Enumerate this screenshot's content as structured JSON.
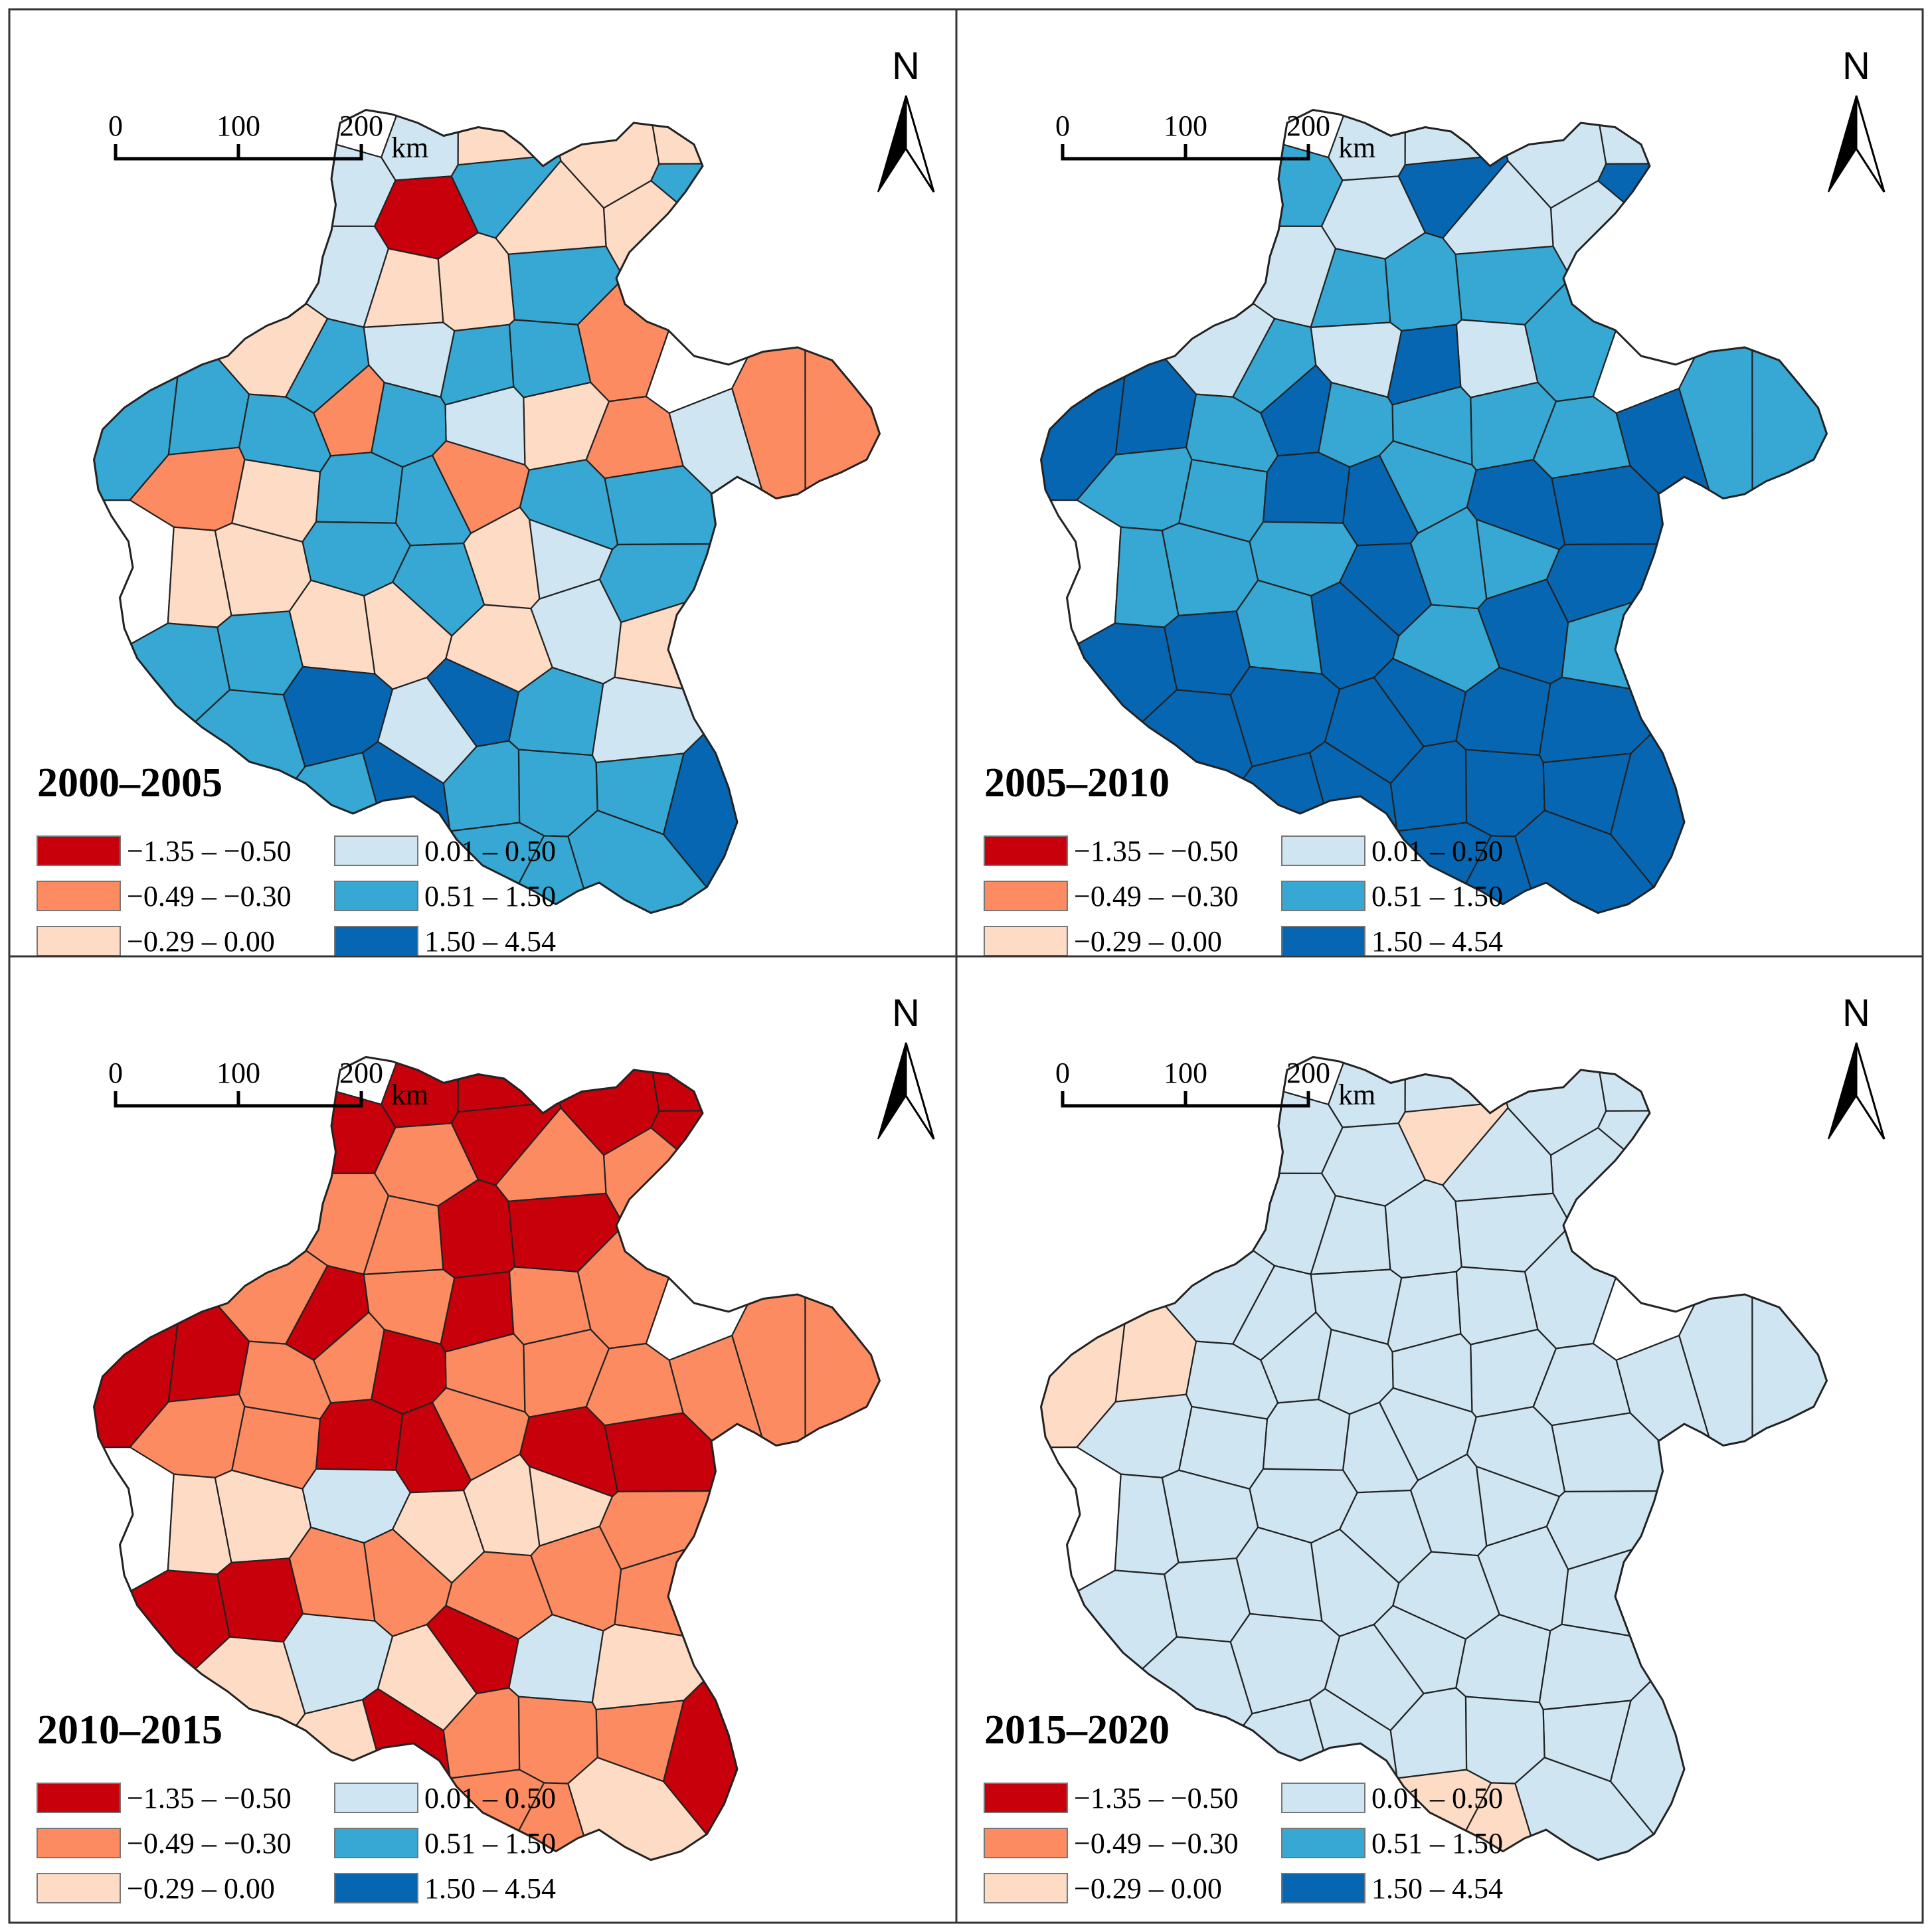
{
  "figure": {
    "scale_bar": {
      "ticks": [
        "0",
        "100",
        "200"
      ],
      "unit": "km"
    },
    "north_arrow": {
      "label": "N"
    },
    "legend": {
      "classes": [
        {
          "label": "−1.35 – −0.50",
          "color": "#c8000b"
        },
        {
          "label": "−0.49 – −0.30",
          "color": "#fc8b62"
        },
        {
          "label": "−0.29 – 0.00",
          "color": "#fddbc4"
        },
        {
          "label": "0.01 – 0.50",
          "color": "#cfe6f2"
        },
        {
          "label": "0.51 – 1.50",
          "color": "#36a8d3"
        },
        {
          "label": "1.50 – 4.54",
          "color": "#0766b1"
        }
      ],
      "no_data_color": "#ffffff"
    },
    "panels": [
      {
        "label": "2000–2005",
        "regions": [
          "none",
          "3",
          "2",
          "2",
          "2",
          "3",
          "4",
          "4",
          "2",
          "0",
          "2",
          "3",
          "4",
          "2",
          "2",
          "1",
          "2",
          "3",
          "4",
          "4",
          "4",
          "none",
          "1",
          "1",
          "1",
          "2",
          "3",
          "4",
          "4",
          "4",
          "3",
          "4",
          "1",
          "1",
          "1",
          "2",
          "4",
          "4",
          "4",
          "4",
          "4",
          "3",
          "2",
          "2",
          "none",
          "2",
          "4",
          "4",
          "3",
          "2",
          "2",
          "2",
          "2",
          "4",
          "4",
          "5",
          "5",
          "4",
          "4",
          "3",
          "3",
          "4",
          "4",
          "4",
          "5",
          "5",
          "4",
          "4",
          "4",
          "4",
          "3",
          "none",
          "5",
          "5",
          "5",
          "5",
          "5",
          "5",
          "none",
          "4",
          "none",
          "5",
          "5",
          "5",
          "5",
          "5",
          "3",
          "none",
          "5",
          "5",
          "5",
          "5",
          "5"
        ]
      },
      {
        "label": "2005–2010",
        "regions": [
          "none",
          "3",
          "3",
          "3",
          "3",
          "4",
          "5",
          "5",
          "3",
          "3",
          "3",
          "3",
          "4",
          "4",
          "4",
          "4",
          "3",
          "3",
          "3",
          "4",
          "5",
          "none",
          "5",
          "4",
          "4",
          "4",
          "4",
          "4",
          "5",
          "5",
          "5",
          "4",
          "4",
          "4",
          "4",
          "4",
          "5",
          "5",
          "5",
          "5",
          "4",
          "4",
          "4",
          "4",
          "none",
          "4",
          "5",
          "5",
          "5",
          "5",
          "4",
          "4",
          "4",
          "5",
          "5",
          "5",
          "5",
          "5",
          "5",
          "5",
          "5",
          "5",
          "5",
          "5",
          "5",
          "5",
          "5",
          "5",
          "5",
          "5",
          "5",
          "none",
          "5",
          "5",
          "5",
          "5",
          "5",
          "5",
          "none",
          "5",
          "none",
          "5",
          "5",
          "5",
          "5",
          "5",
          "5",
          "none",
          "5",
          "5",
          "5",
          "5",
          "5"
        ]
      },
      {
        "label": "2010–2015",
        "regions": [
          "none",
          "0",
          "0",
          "0",
          "0",
          "0",
          "0",
          "0",
          "1",
          "1",
          "1",
          "1",
          "0",
          "0",
          "1",
          "1",
          "1",
          "1",
          "1",
          "0",
          "0",
          "none",
          "1",
          "1",
          "1",
          "1",
          "1",
          "0",
          "0",
          "0",
          "1",
          "1",
          "1",
          "1",
          "1",
          "1",
          "0",
          "0",
          "0",
          "0",
          "3",
          "2",
          "2",
          "2",
          "none",
          "2",
          "2",
          "1",
          "1",
          "1",
          "1",
          "1",
          "1",
          "0",
          "0",
          "0",
          "3",
          "3",
          "2",
          "2",
          "2",
          "1",
          "1",
          "1",
          "0",
          "0",
          "2",
          "2",
          "1",
          "1",
          "1",
          "none",
          "1",
          "1",
          "1",
          "0",
          "0",
          "0",
          "none",
          "1",
          "none",
          "1",
          "1",
          "1",
          "1",
          "1",
          "2",
          "none",
          "1",
          "1",
          "1",
          "1",
          "1"
        ]
      },
      {
        "label": "2015–2020",
        "regions": [
          "none",
          "3",
          "3",
          "3",
          "3",
          "3",
          "2",
          "3",
          "3",
          "3",
          "3",
          "3",
          "3",
          "3",
          "3",
          "3",
          "3",
          "3",
          "3",
          "3",
          "3",
          "none",
          "3",
          "3",
          "3",
          "3",
          "3",
          "3",
          "2",
          "2",
          "3",
          "3",
          "3",
          "3",
          "3",
          "3",
          "3",
          "3",
          "3",
          "3",
          "3",
          "3",
          "3",
          "3",
          "none",
          "3",
          "3",
          "3",
          "3",
          "3",
          "3",
          "3",
          "3",
          "3",
          "3",
          "3",
          "3",
          "3",
          "3",
          "3",
          "3",
          "3",
          "3",
          "3",
          "3",
          "3",
          "3",
          "3",
          "2",
          "2",
          "3",
          "none",
          "3",
          "3",
          "3",
          "3",
          "3",
          "3",
          "none",
          "3",
          "none",
          "3",
          "3",
          "3",
          "3",
          "3",
          "3",
          "none",
          "3",
          "3",
          "3",
          "3",
          "3"
        ]
      }
    ]
  }
}
